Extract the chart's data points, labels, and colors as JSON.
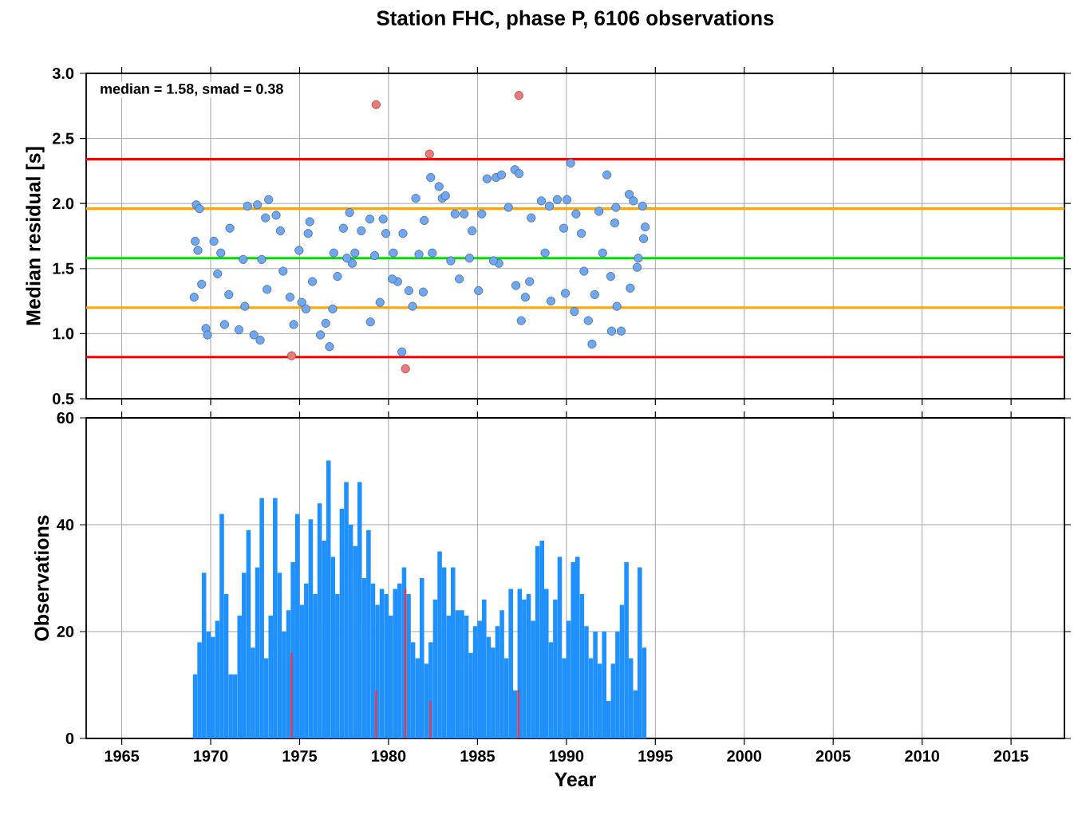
{
  "chart_data": [
    {
      "type": "scatter",
      "title": "Station FHC, phase P, 6106 observations",
      "ylabel": "Median residual [s]",
      "xlim": [
        1963,
        2018
      ],
      "xticks": [
        1965,
        1970,
        1975,
        1980,
        1985,
        1990,
        1995,
        2000,
        2005,
        2010,
        2015
      ],
      "ylim": [
        0.5,
        3.0
      ],
      "yticks": [
        {
          "value": 0.5,
          "label": "0.5"
        },
        {
          "value": 1,
          "label": "1.0"
        },
        {
          "value": 1.5,
          "label": "1.5"
        },
        {
          "value": 2,
          "label": "2.0"
        },
        {
          "value": 2.5,
          "label": "2.5"
        },
        {
          "value": 3,
          "label": "3.0"
        }
      ],
      "tick_labels": "y",
      "grid": true,
      "marker": "circle",
      "annotations": [
        "median = 1.58, smad = 0.38"
      ],
      "ref_lines": [
        {
          "axis": "y",
          "value": 2.34,
          "color": "#ff0000"
        },
        {
          "axis": "y",
          "value": 1.96,
          "color": "#ffa500"
        },
        {
          "axis": "y",
          "value": 1.58,
          "color": "#00e000"
        },
        {
          "axis": "y",
          "value": 1.2,
          "color": "#ffa500"
        },
        {
          "axis": "y",
          "value": 0.82,
          "color": "#ff0000"
        }
      ],
      "series": [
        {
          "color": "#6fa8f0",
          "x": [
            1969.19,
            1969.37,
            1969.13,
            1969.28,
            1969.49,
            1969.07,
            1969.73,
            1969.82,
            1970.18,
            1970.39,
            1970.78,
            1971.08,
            1971.02,
            1971.59,
            1971.92,
            1972.07,
            1972.63,
            1972.43,
            1972.78,
            1973.08,
            1973.26,
            1973.17,
            1973.68,
            1973.92,
            1974.07,
            1974.46,
            1974.67,
            1975.12,
            1975.36,
            1975.57,
            1975.48,
            1975.72,
            1976.17,
            1976.47,
            1976.68,
            1976.86,
            1976.92,
            1977.46,
            1977.81,
            1977.96,
            1978.11,
            1978.47,
            1978.95,
            1978.98,
            1979.52,
            1979.7,
            1979.85,
            1980.27,
            1980.51,
            1980.81,
            1980.75,
            1981.14,
            1981.35,
            1981.53,
            1982.01,
            1981.95,
            1982.37,
            1982.84,
            1983.02,
            1983.2,
            1983.5,
            1983.74,
            1983.98,
            1984.25,
            1984.7,
            1985.06,
            1985.24,
            1985.54,
            1986.05,
            1986.35,
            1986.2,
            1986.74,
            1987.1,
            1987.34,
            1987.46,
            1987.16,
            1987.69,
            1988.02,
            1988.59,
            1989.04,
            1989.13,
            1989.49,
            1989.85,
            1990.03,
            1990.24,
            1989.94,
            1990.54,
            1990.45,
            1990.84,
            1991.23,
            1991.44,
            1991.59,
            1991.83,
            1992.28,
            1992.54,
            1993.08,
            1992.84,
            1992.78,
            1992.72,
            1993.53,
            1993.77,
            1994.28,
            1994.43,
            1994.34,
            1993.98,
            1994.04,
            1993.59,
            1977.66,
            1979.22,
            1981.71,
            1984.55,
            1988.8,
            1970.57,
            1971.83,
            1972.87,
            1974.97,
            1977.13,
            1980.21,
            1982.46,
            1985.9,
            1987.93,
            1990.99,
            1992.04,
            1992.49
          ],
          "values": [
            1.99,
            1.96,
            1.71,
            1.64,
            1.38,
            1.28,
            1.04,
            0.99,
            1.71,
            1.46,
            1.07,
            1.81,
            1.3,
            1.03,
            1.21,
            1.98,
            1.99,
            0.99,
            0.95,
            1.89,
            2.03,
            1.34,
            1.91,
            1.79,
            1.48,
            1.28,
            1.07,
            1.24,
            1.19,
            1.86,
            1.77,
            1.4,
            0.99,
            1.08,
            0.9,
            1.19,
            1.62,
            1.81,
            1.93,
            1.54,
            1.62,
            1.79,
            1.88,
            1.09,
            1.24,
            1.88,
            1.77,
            1.62,
            1.4,
            1.77,
            0.86,
            1.33,
            1.21,
            2.04,
            1.87,
            1.32,
            2.2,
            2.13,
            2.04,
            2.06,
            1.56,
            1.92,
            1.42,
            1.92,
            1.79,
            1.33,
            1.92,
            2.19,
            2.2,
            2.22,
            1.54,
            1.97,
            2.26,
            2.23,
            1.1,
            1.37,
            1.28,
            1.89,
            2.02,
            1.98,
            1.25,
            2.03,
            1.81,
            2.03,
            2.31,
            1.31,
            1.92,
            1.17,
            1.77,
            1.1,
            0.92,
            1.3,
            1.94,
            2.22,
            1.02,
            1.02,
            1.21,
            1.97,
            1.85,
            2.07,
            2.02,
            1.98,
            1.82,
            1.73,
            1.51,
            1.58,
            1.35,
            1.58,
            1.6,
            1.61,
            1.58,
            1.62,
            1.62,
            1.57,
            1.57,
            1.64,
            1.44,
            1.42,
            1.62,
            1.56,
            1.4,
            1.48,
            1.62,
            1.44
          ]
        },
        {
          "color": "#f07878",
          "x": [
            1979.3,
            1987.33,
            1982.3,
            1974.55,
            1980.95
          ],
          "values": [
            2.76,
            2.83,
            2.38,
            0.83,
            0.73
          ]
        }
      ]
    },
    {
      "type": "bar",
      "xlabel": "Year",
      "ylabel": "Observations",
      "xlim": [
        1963,
        2018
      ],
      "xticks": [
        1965,
        1970,
        1975,
        1980,
        1985,
        1990,
        1995,
        2000,
        2005,
        2010,
        2015
      ],
      "ylim": [
        0,
        60
      ],
      "yticks": [
        0,
        20,
        40,
        60
      ],
      "grid": true,
      "series": [
        {
          "color": "#1e90ff",
          "x": [
            1969.125,
            1969.375,
            1969.625,
            1969.875,
            1970.125,
            1970.375,
            1970.625,
            1970.875,
            1971.125,
            1971.375,
            1971.625,
            1971.875,
            1972.125,
            1972.375,
            1972.625,
            1972.875,
            1973.125,
            1973.375,
            1973.625,
            1973.875,
            1974.125,
            1974.375,
            1974.625,
            1974.875,
            1975.125,
            1975.375,
            1975.625,
            1975.875,
            1976.125,
            1976.375,
            1976.625,
            1976.875,
            1977.125,
            1977.375,
            1977.625,
            1977.875,
            1978.125,
            1978.375,
            1978.625,
            1978.875,
            1979.125,
            1979.375,
            1979.625,
            1979.875,
            1980.125,
            1980.375,
            1980.625,
            1980.875,
            1981.125,
            1981.375,
            1981.625,
            1981.875,
            1982.125,
            1982.375,
            1982.625,
            1982.875,
            1983.125,
            1983.375,
            1983.625,
            1983.875,
            1984.125,
            1984.375,
            1984.625,
            1984.875,
            1985.125,
            1985.375,
            1985.625,
            1985.875,
            1986.125,
            1986.375,
            1986.625,
            1986.875,
            1987.125,
            1987.375,
            1987.625,
            1987.875,
            1988.125,
            1988.375,
            1988.625,
            1988.875,
            1989.125,
            1989.375,
            1989.625,
            1989.875,
            1990.125,
            1990.375,
            1990.625,
            1990.875,
            1991.125,
            1991.375,
            1991.625,
            1991.875,
            1992.125,
            1992.375,
            1992.625,
            1992.875,
            1993.125,
            1993.375,
            1993.625,
            1993.875,
            1994.125,
            1994.375
          ],
          "values": [
            12,
            18,
            31,
            20,
            19,
            22,
            42,
            27,
            12,
            12,
            23,
            31,
            39,
            17,
            32,
            45,
            15,
            23,
            45,
            31,
            20,
            24,
            33,
            42,
            25,
            29,
            41,
            27,
            44,
            37,
            52,
            34,
            27,
            43,
            48,
            40,
            36,
            48,
            30,
            39,
            29,
            25,
            28,
            27,
            23,
            28,
            29,
            32,
            27,
            18,
            15,
            30,
            14,
            18,
            26,
            35,
            32,
            23,
            32,
            24,
            24,
            23,
            16,
            21,
            22,
            26,
            19,
            17,
            21,
            24,
            15,
            28,
            9,
            28,
            26,
            27,
            22,
            36,
            37,
            28,
            18,
            26,
            34,
            15,
            22,
            33,
            34,
            27,
            21,
            15,
            20,
            14,
            20,
            7,
            14,
            20,
            25,
            33,
            15,
            9,
            32,
            17
          ]
        },
        {
          "color": "#ff3030",
          "x": [
            1974.55,
            1979.3,
            1980.95,
            1982.35,
            1987.3
          ],
          "values": [
            16,
            9,
            28,
            7,
            9
          ]
        }
      ]
    }
  ]
}
